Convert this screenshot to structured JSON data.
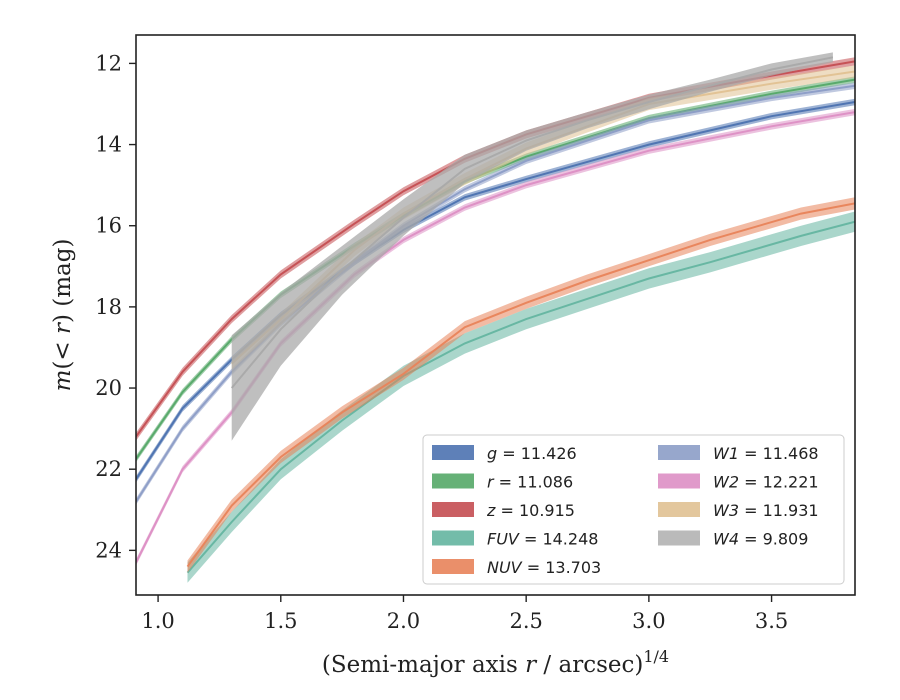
{
  "chart_data": {
    "type": "line",
    "xlabel": "(Semi-major axis r / arcsec)^1/4",
    "ylabel": "m(< r) (mag)",
    "xlim": [
      0.91,
      3.84
    ],
    "ylim": [
      25.1,
      11.3
    ],
    "y_inverted": true,
    "x_ticks": [
      "1.0",
      "1.5",
      "2.0",
      "2.5",
      "3.0",
      "3.5"
    ],
    "y_ticks": [
      "12",
      "14",
      "16",
      "18",
      "20",
      "22",
      "24"
    ],
    "grid": false,
    "legend": {
      "placement": "lower-right",
      "columns": 2
    },
    "series": [
      {
        "name": "g = 11.426",
        "band": "g",
        "value": "11.426",
        "color": "#4c72b0",
        "x": [
          0.91,
          1.1,
          1.3,
          1.5,
          1.8,
          2.0,
          2.25,
          2.5,
          3.0,
          3.5,
          3.84
        ],
        "y": [
          22.25,
          20.5,
          19.3,
          18.2,
          16.9,
          16.1,
          15.3,
          14.85,
          14.0,
          13.3,
          12.95
        ],
        "band_halfwidth": 0.08
      },
      {
        "name": "r = 11.086",
        "band": "r",
        "value": "11.086",
        "color": "#55a868",
        "x": [
          0.91,
          1.1,
          1.3,
          1.5,
          1.8,
          2.0,
          2.25,
          2.5,
          3.0,
          3.5,
          3.84
        ],
        "y": [
          21.75,
          20.1,
          18.8,
          17.7,
          16.5,
          15.75,
          14.9,
          14.3,
          13.35,
          12.75,
          12.4
        ],
        "band_halfwidth": 0.08
      },
      {
        "name": "z = 10.915",
        "band": "z",
        "value": "10.915",
        "color": "#c44e52",
        "x": [
          0.91,
          1.1,
          1.3,
          1.5,
          1.8,
          2.0,
          2.25,
          2.5,
          3.0,
          3.5,
          3.84
        ],
        "y": [
          21.2,
          19.6,
          18.3,
          17.2,
          15.95,
          15.15,
          14.35,
          13.75,
          12.85,
          12.3,
          11.95
        ],
        "band_halfwidth": 0.1
      },
      {
        "name": "FUV = 14.248",
        "band": "FUV",
        "value": "14.248",
        "color": "#64b5a0",
        "x": [
          1.12,
          1.3,
          1.5,
          1.75,
          2.0,
          2.25,
          2.5,
          2.75,
          3.0,
          3.25,
          3.62,
          3.84
        ],
        "y": [
          24.55,
          23.3,
          22.0,
          20.8,
          19.7,
          18.9,
          18.3,
          17.8,
          17.3,
          16.9,
          16.25,
          15.9
        ],
        "band_halfwidth": 0.25
      },
      {
        "name": "NUV = 13.703",
        "band": "NUV",
        "value": "13.703",
        "color": "#e8835a",
        "x": [
          1.12,
          1.3,
          1.5,
          1.75,
          2.0,
          2.25,
          2.5,
          2.75,
          3.0,
          3.25,
          3.62,
          3.84
        ],
        "y": [
          24.4,
          22.9,
          21.7,
          20.6,
          19.65,
          18.5,
          17.9,
          17.35,
          16.85,
          16.35,
          15.7,
          15.45
        ],
        "band_halfwidth": 0.15
      },
      {
        "name": "W1 = 11.468",
        "band": "W1",
        "value": "11.468",
        "color": "#8c9dc6",
        "x": [
          0.91,
          1.1,
          1.3,
          1.5,
          1.8,
          2.0,
          2.25,
          2.5,
          3.0,
          3.5,
          3.84
        ],
        "y": [
          22.8,
          21.0,
          19.6,
          18.4,
          16.9,
          16.0,
          15.1,
          14.4,
          13.4,
          12.85,
          12.55
        ],
        "band_halfwidth": 0.08
      },
      {
        "name": "W2 = 12.221",
        "band": "W2",
        "value": "12.221",
        "color": "#dd8fc4",
        "x": [
          0.91,
          1.1,
          1.3,
          1.5,
          1.8,
          2.0,
          2.25,
          2.5,
          3.0,
          3.5,
          3.84
        ],
        "y": [
          24.3,
          22.0,
          20.6,
          18.9,
          17.2,
          16.35,
          15.55,
          15.0,
          14.15,
          13.55,
          13.2
        ],
        "band_halfwidth": 0.08
      },
      {
        "name": "W3 = 11.931",
        "band": "W3",
        "value": "11.931",
        "color": "#e0c192",
        "x": [
          1.3,
          1.5,
          1.8,
          2.0,
          2.25,
          2.5,
          3.0,
          3.5,
          3.84
        ],
        "y": [
          19.4,
          18.3,
          16.6,
          15.7,
          14.85,
          14.1,
          13.0,
          12.5,
          12.2
        ],
        "band_halfwidth": 0.15
      },
      {
        "name": "W4 = 9.809",
        "band": "W4",
        "value": "9.809",
        "color": "#a9a9a9",
        "x": [
          1.3,
          1.5,
          1.75,
          2.0,
          2.25,
          2.5,
          2.75,
          3.0,
          3.25,
          3.5,
          3.75
        ],
        "y": [
          20.0,
          18.55,
          17.1,
          15.8,
          14.6,
          13.9,
          13.4,
          12.95,
          12.55,
          12.15,
          11.85
        ],
        "band_halfwidth": [
          1.3,
          0.9,
          0.6,
          0.45,
          0.35,
          0.25,
          0.2,
          0.18,
          0.15,
          0.15,
          0.12
        ]
      }
    ]
  }
}
